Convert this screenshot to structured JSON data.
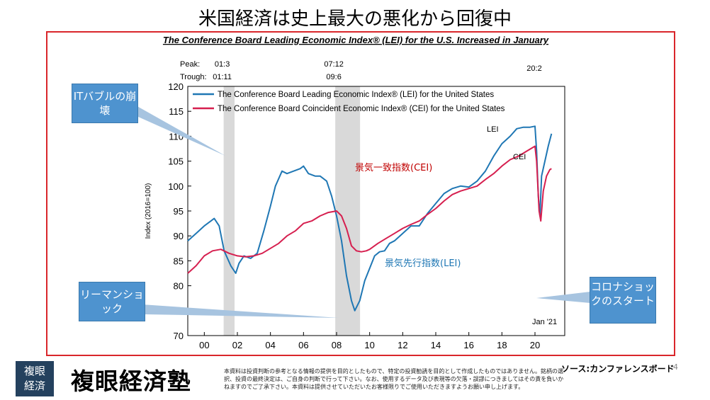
{
  "slide": {
    "title": "米国経済は史上最大の悪化から回復中",
    "source": "ソース:カンファレンスボード",
    "page_number": "4",
    "brand": "複眼経済塾",
    "logo_line1": "複眼",
    "logo_line2": "経済",
    "disclaimer": "本資料は投資判断の参考となる情報の提供を目的としたもので、特定の投資勧誘を目的として作成したものではありません。銘柄の選択、投資の最終決定は、ご自身の判断で行って下さい。なお、使用するデータ及び表現等の欠落・誤謬につきましてはその責を負いかねますのでご了承下さい。本資料は提供させていただいたお客様限りでご使用いただきますようお願い申し上げます。"
  },
  "callouts": {
    "it_bubble": "ITバブルの崩壊",
    "lehman": "リーマンショック",
    "corona": "コロナショックのスタート"
  },
  "chart_data": {
    "type": "line",
    "title": "The Conference Board Leading Economic Index® (LEI) for the U.S. Increased in January",
    "ylabel": "Index (2016=100)",
    "ylim": [
      70,
      120
    ],
    "yticks": [
      70,
      75,
      80,
      85,
      90,
      95,
      100,
      105,
      110,
      115,
      120
    ],
    "xlim": [
      1999.0,
      2021.8
    ],
    "xticks": [
      {
        "v": 2000,
        "label": "00"
      },
      {
        "v": 2002,
        "label": "02"
      },
      {
        "v": 2004,
        "label": "04"
      },
      {
        "v": 2006,
        "label": "06"
      },
      {
        "v": 2008,
        "label": "08"
      },
      {
        "v": 2010,
        "label": "10"
      },
      {
        "v": 2012,
        "label": "12"
      },
      {
        "v": 2014,
        "label": "14"
      },
      {
        "v": 2016,
        "label": "16"
      },
      {
        "v": 2018,
        "label": "18"
      },
      {
        "v": 2020,
        "label": "20"
      }
    ],
    "peak_label": "Peak:",
    "trough_label": "Trough:",
    "recessions": [
      {
        "start": 2001.17,
        "end": 2001.83,
        "peak": "01:3",
        "trough": "01:11"
      },
      {
        "start": 2007.92,
        "end": 2009.42,
        "peak": "07:12",
        "trough": "09:6"
      },
      {
        "start": 2020.08,
        "end": 2020.08,
        "peak": "20:2",
        "trough": ""
      }
    ],
    "legend": [
      "The Conference Board Leading Economic Index® (LEI) for the United States",
      "The Conference Board Coincident Economic Index® (CEI) for the United States"
    ],
    "annotations": {
      "lei": "LEI",
      "cei": "CEI",
      "end": "Jan '21",
      "lei_jp": "景気先行指数(LEI)",
      "cei_jp": "景気一致指数(CEI)"
    },
    "series": [
      {
        "name": "LEI",
        "color": "#1f77b4",
        "x": [
          1999.0,
          1999.5,
          2000.0,
          2000.4,
          2000.6,
          2000.9,
          2001.2,
          2001.6,
          2001.9,
          2002.1,
          2002.4,
          2002.8,
          2003.2,
          2003.6,
          2004.0,
          2004.3,
          2004.7,
          2005.0,
          2005.4,
          2005.8,
          2006.0,
          2006.3,
          2006.7,
          2007.0,
          2007.4,
          2007.7,
          2008.0,
          2008.3,
          2008.6,
          2008.9,
          2009.1,
          2009.4,
          2009.7,
          2010.0,
          2010.3,
          2010.6,
          2010.9,
          2011.2,
          2011.5,
          2012.0,
          2012.5,
          2013.0,
          2013.5,
          2014.0,
          2014.5,
          2015.0,
          2015.5,
          2016.0,
          2016.5,
          2017.0,
          2017.5,
          2018.0,
          2018.5,
          2018.9,
          2019.3,
          2019.7,
          2020.0,
          2020.1,
          2020.2,
          2020.3,
          2020.4,
          2020.6,
          2020.8,
          2021.0
        ],
        "y": [
          89,
          90.5,
          92,
          93,
          93.5,
          92,
          87,
          84,
          82.5,
          84.5,
          86,
          85.5,
          86.5,
          91,
          96,
          100,
          103,
          102.5,
          103,
          103.5,
          104,
          102.5,
          102,
          102,
          101,
          98,
          94,
          89,
          82,
          77,
          75,
          77,
          81,
          83.5,
          86,
          86.8,
          87,
          88.5,
          89,
          90.5,
          92,
          92,
          94.5,
          96.5,
          98.5,
          99.5,
          100,
          99.8,
          101,
          103,
          106,
          108.5,
          110,
          111.5,
          111.8,
          111.8,
          112,
          107,
          98,
          94,
          102,
          105,
          108,
          110.5
        ]
      },
      {
        "name": "CEI",
        "color": "#d61f4f",
        "x": [
          1999.0,
          1999.5,
          2000.0,
          2000.5,
          2001.0,
          2001.5,
          2002.0,
          2002.5,
          2003.0,
          2003.5,
          2004.0,
          2004.5,
          2005.0,
          2005.5,
          2006.0,
          2006.5,
          2007.0,
          2007.5,
          2008.0,
          2008.3,
          2008.6,
          2008.9,
          2009.2,
          2009.5,
          2009.8,
          2010.0,
          2010.5,
          2011.0,
          2011.5,
          2012.0,
          2012.5,
          2013.0,
          2013.5,
          2014.0,
          2014.5,
          2015.0,
          2015.5,
          2016.0,
          2016.5,
          2017.0,
          2017.5,
          2018.0,
          2018.5,
          2019.0,
          2019.5,
          2020.0,
          2020.1,
          2020.25,
          2020.35,
          2020.5,
          2020.7,
          2020.9,
          2021.0
        ],
        "y": [
          82.5,
          84,
          86,
          87,
          87.3,
          86.5,
          86,
          85.8,
          86,
          86.5,
          87.5,
          88.5,
          90,
          91,
          92.5,
          93,
          94,
          94.7,
          95,
          94,
          91.5,
          88,
          87,
          86.8,
          87,
          87.3,
          88.5,
          89.5,
          90.5,
          91.5,
          92.3,
          93,
          94.3,
          95.5,
          97,
          98.3,
          99,
          99.5,
          100,
          101.3,
          102.5,
          104,
          105.3,
          106,
          107,
          108,
          105,
          95,
          93,
          99,
          102,
          103.3,
          103.5
        ]
      }
    ]
  }
}
